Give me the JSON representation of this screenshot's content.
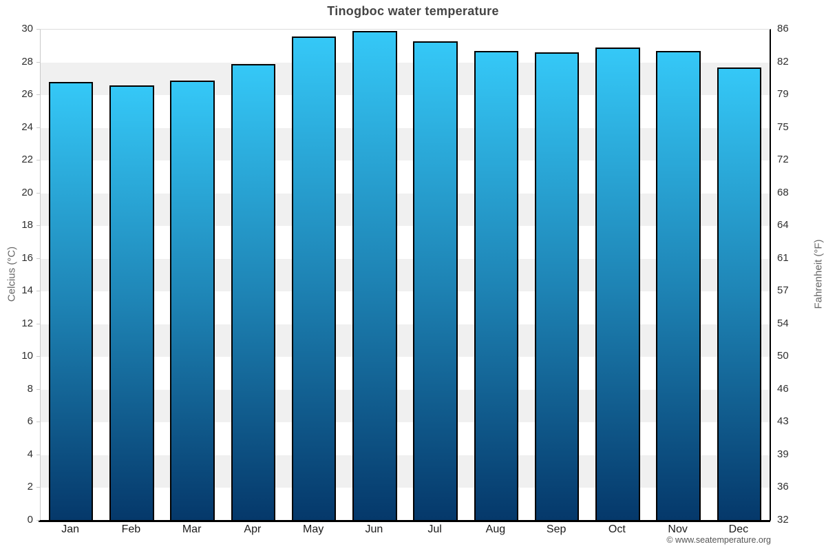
{
  "header": {
    "title": "Tinogboc water temperature"
  },
  "footer": {
    "copyright": "© www.seatemperature.org"
  },
  "chart_data": {
    "type": "bar",
    "title": "Tinogboc water temperature",
    "categories": [
      "Jan",
      "Feb",
      "Mar",
      "Apr",
      "May",
      "Jun",
      "Jul",
      "Aug",
      "Sep",
      "Oct",
      "Nov",
      "Dec"
    ],
    "values": [
      26.8,
      26.6,
      26.9,
      27.9,
      29.6,
      29.9,
      29.3,
      28.7,
      28.6,
      28.9,
      28.7,
      27.7
    ],
    "values_unit": "°C",
    "xlabel": "",
    "ylabel_left": "Celcius (°C)",
    "ylabel_right": "Fahrenheit (°F)",
    "ylim_celsius": [
      0,
      30
    ],
    "celsius_ticks": [
      0,
      2,
      4,
      6,
      8,
      10,
      12,
      14,
      16,
      18,
      20,
      22,
      24,
      26,
      28,
      30
    ],
    "fahrenheit_tick_labels": [
      "32",
      "36",
      "39",
      "43",
      "46",
      "50",
      "54",
      "57",
      "61",
      "64",
      "68",
      "72",
      "75",
      "79",
      "82",
      "86"
    ],
    "grid": "alternating horizontal bands every 2°C",
    "legend_position": "none",
    "colors": {
      "bar_top": "#35c8f7",
      "bar_mid": "#1e84b5",
      "bar_bottom": "#05386a",
      "bar_border": "#000000",
      "band_gray": "#f0f0f0",
      "band_white": "#ffffff",
      "left_axis_line": "#c9c9c9",
      "right_axis_line": "#000000",
      "bottom_axis_line": "#000000",
      "top_gridline": "#dddddd",
      "title_text": "#444444",
      "tick_text": "#2f2f2f",
      "axis_title_text": "#666666",
      "copyright_text": "#555555"
    }
  }
}
